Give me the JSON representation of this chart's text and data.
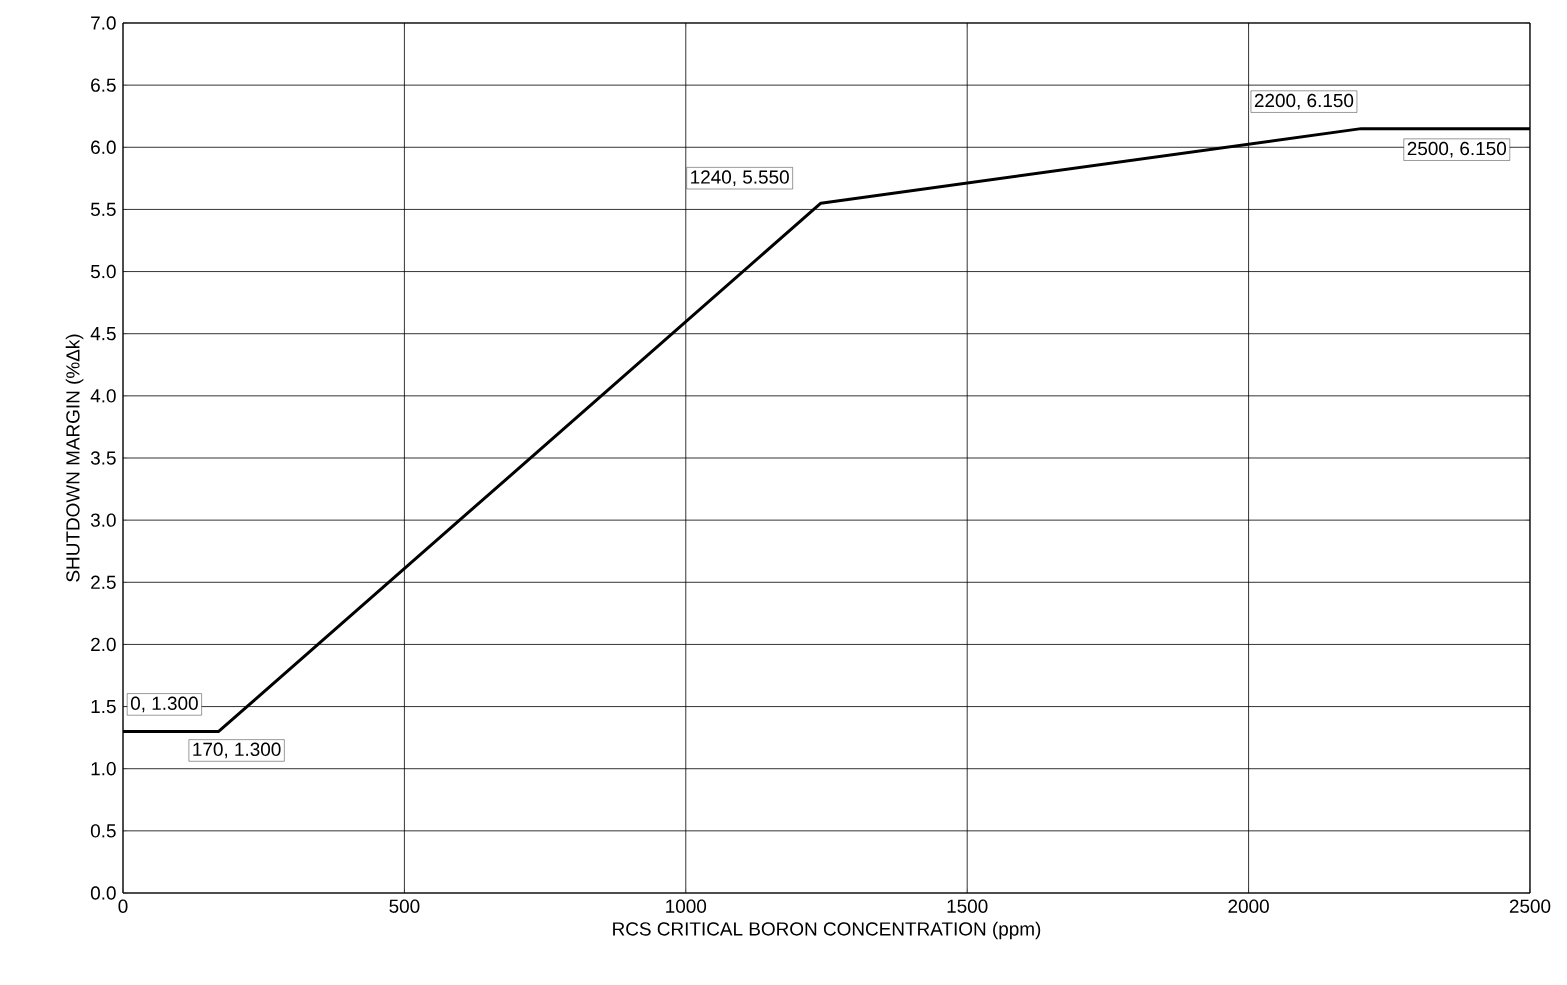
{
  "chart_data": {
    "type": "line",
    "xlabel": "RCS CRITICAL BORON CONCENTRATION (ppm)",
    "ylabel": "SHUTDOWN MARGIN (%Δk)",
    "x": [
      0,
      170,
      1240,
      2200,
      2500
    ],
    "values": [
      1.3,
      1.3,
      5.55,
      6.15,
      6.15
    ],
    "color": "#000000",
    "marker": "none",
    "line_style": "solid",
    "grid": true,
    "xlim": [
      0,
      2500
    ],
    "xticks": [
      0,
      500,
      1000,
      1500,
      2000,
      2500
    ],
    "ylim": [
      0,
      7
    ],
    "yticks": [
      {
        "value": 0,
        "label": "0.0"
      },
      {
        "value": 0.5,
        "label": "0.5"
      },
      {
        "value": 1,
        "label": "1.0"
      },
      {
        "value": 1.5,
        "label": "1.5"
      },
      {
        "value": 2,
        "label": "2.0"
      },
      {
        "value": 2.5,
        "label": "2.5"
      },
      {
        "value": 3,
        "label": "3.0"
      },
      {
        "value": 3.5,
        "label": "3.5"
      },
      {
        "value": 4,
        "label": "4.0"
      },
      {
        "value": 4.5,
        "label": "4.5"
      },
      {
        "value": 5,
        "label": "5.0"
      },
      {
        "value": 5.5,
        "label": "5.5"
      },
      {
        "value": 6,
        "label": "6.0"
      },
      {
        "value": 6.5,
        "label": "6.5"
      },
      {
        "value": 7,
        "label": "7.0"
      }
    ],
    "annotations": [
      {
        "text": "0, 1.300",
        "x": 0,
        "y": 1.3
      },
      {
        "text": "170, 1.300",
        "x": 170,
        "y": 1.3
      },
      {
        "text": "1240, 5.550",
        "x": 1240,
        "y": 5.55
      },
      {
        "text": "2200, 6.150",
        "x": 2200,
        "y": 6.15
      },
      {
        "text": "2500, 6.150",
        "x": 2500,
        "y": 6.15
      }
    ]
  }
}
